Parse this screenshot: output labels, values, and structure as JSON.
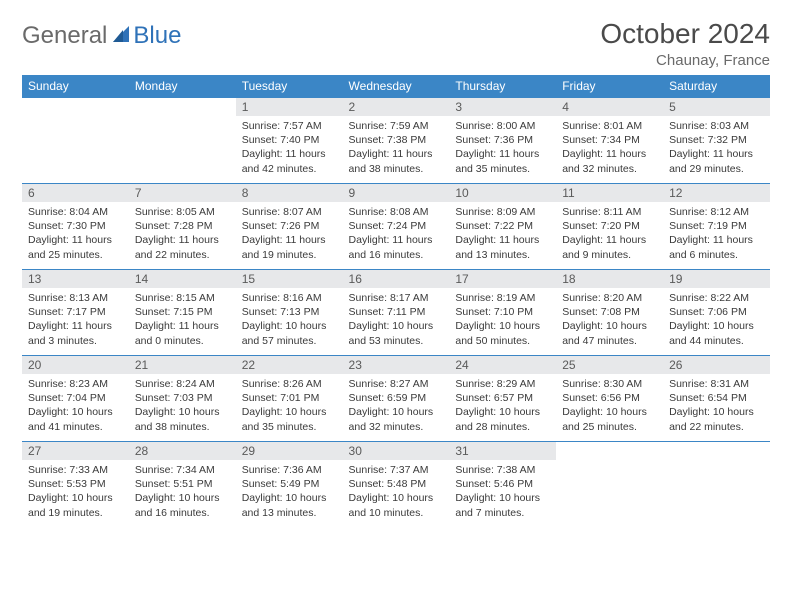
{
  "brand": {
    "first": "General",
    "second": "Blue"
  },
  "title": "October 2024",
  "location": "Chaunay, France",
  "colors": {
    "header_bg": "#3b86c6",
    "header_text": "#ffffff",
    "daynum_bg": "#e7e8ea",
    "border": "#3b86c6",
    "brand_gray": "#6a6a6a",
    "brand_blue": "#2f72b8"
  },
  "day_names": [
    "Sunday",
    "Monday",
    "Tuesday",
    "Wednesday",
    "Thursday",
    "Friday",
    "Saturday"
  ],
  "weeks": [
    [
      null,
      null,
      {
        "n": "1",
        "sr": "Sunrise: 7:57 AM",
        "ss": "Sunset: 7:40 PM",
        "dl": "Daylight: 11 hours and 42 minutes."
      },
      {
        "n": "2",
        "sr": "Sunrise: 7:59 AM",
        "ss": "Sunset: 7:38 PM",
        "dl": "Daylight: 11 hours and 38 minutes."
      },
      {
        "n": "3",
        "sr": "Sunrise: 8:00 AM",
        "ss": "Sunset: 7:36 PM",
        "dl": "Daylight: 11 hours and 35 minutes."
      },
      {
        "n": "4",
        "sr": "Sunrise: 8:01 AM",
        "ss": "Sunset: 7:34 PM",
        "dl": "Daylight: 11 hours and 32 minutes."
      },
      {
        "n": "5",
        "sr": "Sunrise: 8:03 AM",
        "ss": "Sunset: 7:32 PM",
        "dl": "Daylight: 11 hours and 29 minutes."
      }
    ],
    [
      {
        "n": "6",
        "sr": "Sunrise: 8:04 AM",
        "ss": "Sunset: 7:30 PM",
        "dl": "Daylight: 11 hours and 25 minutes."
      },
      {
        "n": "7",
        "sr": "Sunrise: 8:05 AM",
        "ss": "Sunset: 7:28 PM",
        "dl": "Daylight: 11 hours and 22 minutes."
      },
      {
        "n": "8",
        "sr": "Sunrise: 8:07 AM",
        "ss": "Sunset: 7:26 PM",
        "dl": "Daylight: 11 hours and 19 minutes."
      },
      {
        "n": "9",
        "sr": "Sunrise: 8:08 AM",
        "ss": "Sunset: 7:24 PM",
        "dl": "Daylight: 11 hours and 16 minutes."
      },
      {
        "n": "10",
        "sr": "Sunrise: 8:09 AM",
        "ss": "Sunset: 7:22 PM",
        "dl": "Daylight: 11 hours and 13 minutes."
      },
      {
        "n": "11",
        "sr": "Sunrise: 8:11 AM",
        "ss": "Sunset: 7:20 PM",
        "dl": "Daylight: 11 hours and 9 minutes."
      },
      {
        "n": "12",
        "sr": "Sunrise: 8:12 AM",
        "ss": "Sunset: 7:19 PM",
        "dl": "Daylight: 11 hours and 6 minutes."
      }
    ],
    [
      {
        "n": "13",
        "sr": "Sunrise: 8:13 AM",
        "ss": "Sunset: 7:17 PM",
        "dl": "Daylight: 11 hours and 3 minutes."
      },
      {
        "n": "14",
        "sr": "Sunrise: 8:15 AM",
        "ss": "Sunset: 7:15 PM",
        "dl": "Daylight: 11 hours and 0 minutes."
      },
      {
        "n": "15",
        "sr": "Sunrise: 8:16 AM",
        "ss": "Sunset: 7:13 PM",
        "dl": "Daylight: 10 hours and 57 minutes."
      },
      {
        "n": "16",
        "sr": "Sunrise: 8:17 AM",
        "ss": "Sunset: 7:11 PM",
        "dl": "Daylight: 10 hours and 53 minutes."
      },
      {
        "n": "17",
        "sr": "Sunrise: 8:19 AM",
        "ss": "Sunset: 7:10 PM",
        "dl": "Daylight: 10 hours and 50 minutes."
      },
      {
        "n": "18",
        "sr": "Sunrise: 8:20 AM",
        "ss": "Sunset: 7:08 PM",
        "dl": "Daylight: 10 hours and 47 minutes."
      },
      {
        "n": "19",
        "sr": "Sunrise: 8:22 AM",
        "ss": "Sunset: 7:06 PM",
        "dl": "Daylight: 10 hours and 44 minutes."
      }
    ],
    [
      {
        "n": "20",
        "sr": "Sunrise: 8:23 AM",
        "ss": "Sunset: 7:04 PM",
        "dl": "Daylight: 10 hours and 41 minutes."
      },
      {
        "n": "21",
        "sr": "Sunrise: 8:24 AM",
        "ss": "Sunset: 7:03 PM",
        "dl": "Daylight: 10 hours and 38 minutes."
      },
      {
        "n": "22",
        "sr": "Sunrise: 8:26 AM",
        "ss": "Sunset: 7:01 PM",
        "dl": "Daylight: 10 hours and 35 minutes."
      },
      {
        "n": "23",
        "sr": "Sunrise: 8:27 AM",
        "ss": "Sunset: 6:59 PM",
        "dl": "Daylight: 10 hours and 32 minutes."
      },
      {
        "n": "24",
        "sr": "Sunrise: 8:29 AM",
        "ss": "Sunset: 6:57 PM",
        "dl": "Daylight: 10 hours and 28 minutes."
      },
      {
        "n": "25",
        "sr": "Sunrise: 8:30 AM",
        "ss": "Sunset: 6:56 PM",
        "dl": "Daylight: 10 hours and 25 minutes."
      },
      {
        "n": "26",
        "sr": "Sunrise: 8:31 AM",
        "ss": "Sunset: 6:54 PM",
        "dl": "Daylight: 10 hours and 22 minutes."
      }
    ],
    [
      {
        "n": "27",
        "sr": "Sunrise: 7:33 AM",
        "ss": "Sunset: 5:53 PM",
        "dl": "Daylight: 10 hours and 19 minutes."
      },
      {
        "n": "28",
        "sr": "Sunrise: 7:34 AM",
        "ss": "Sunset: 5:51 PM",
        "dl": "Daylight: 10 hours and 16 minutes."
      },
      {
        "n": "29",
        "sr": "Sunrise: 7:36 AM",
        "ss": "Sunset: 5:49 PM",
        "dl": "Daylight: 10 hours and 13 minutes."
      },
      {
        "n": "30",
        "sr": "Sunrise: 7:37 AM",
        "ss": "Sunset: 5:48 PM",
        "dl": "Daylight: 10 hours and 10 minutes."
      },
      {
        "n": "31",
        "sr": "Sunrise: 7:38 AM",
        "ss": "Sunset: 5:46 PM",
        "dl": "Daylight: 10 hours and 7 minutes."
      },
      null,
      null
    ]
  ]
}
